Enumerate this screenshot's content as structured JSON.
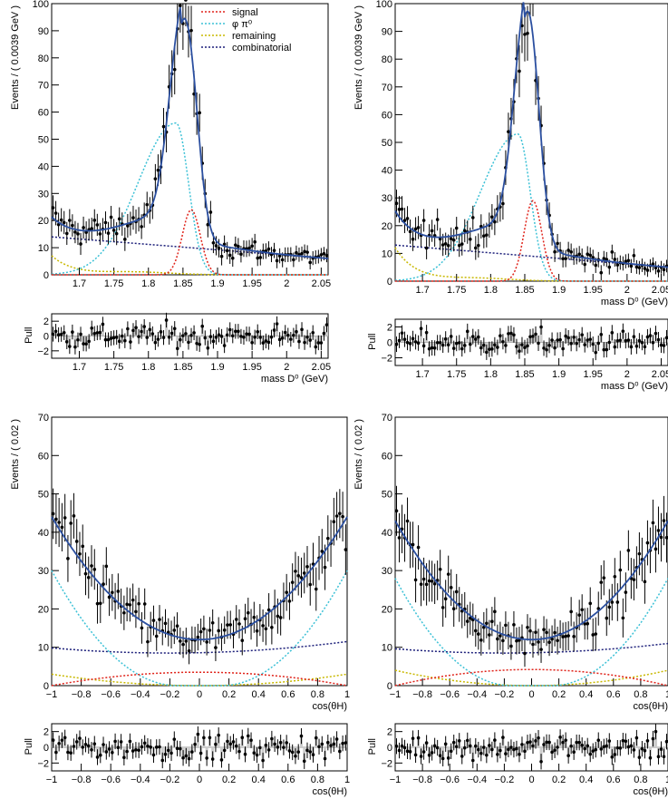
{
  "colors": {
    "total": "#2b4fa0",
    "signal": "#e0241b",
    "phi_pi0": "#3cc1d6",
    "remaining": "#c8b800",
    "combinatorial": "#1c1f7a",
    "points": "#000000"
  },
  "legend": {
    "signal": "signal",
    "phi_pi0": "φ π⁰",
    "remaining": "remaining",
    "combinatorial": "combinatorial"
  },
  "chart_data": [
    {
      "type": "scatter",
      "panel": "mass-main-left",
      "ylabel": "Events / ( 0.0039 GeV )",
      "xlabel": "",
      "xlim": [
        1.66,
        2.06
      ],
      "ylim": [
        0,
        100
      ],
      "x_ticks": [
        "1.7",
        "1.75",
        "1.8",
        "1.85",
        "1.9",
        "1.95",
        "2",
        "2.05"
      ],
      "y_ticks": [
        "0",
        "10",
        "20",
        "30",
        "40",
        "50",
        "60",
        "70",
        "80",
        "90",
        "100"
      ],
      "shape": {
        "total_peak": 76,
        "mu": 1.847,
        "sig": 0.018,
        "comb_left": 14,
        "comb_right": 6,
        "sig_peak": 24,
        "sig_mu": 1.862,
        "phi_peak": 56,
        "phi_mu": 1.84,
        "rem_amp": 7
      }
    },
    {
      "type": "scatter",
      "panel": "mass-main-right",
      "ylabel": "Events / ( 0.0039 GeV )",
      "xlabel": "mass D⁰ (GeV)",
      "xlim": [
        1.66,
        2.06
      ],
      "ylim": [
        0,
        100
      ],
      "x_ticks": [
        "1.7",
        "1.75",
        "1.8",
        "1.85",
        "1.9",
        "1.95",
        "2",
        "2.05"
      ],
      "y_ticks": [
        "0",
        "10",
        "20",
        "30",
        "40",
        "50",
        "60",
        "70",
        "80",
        "90",
        "100"
      ],
      "shape": {
        "total_peak": 73,
        "mu": 1.849,
        "sig": 0.017,
        "comb_left": 13,
        "comb_right": 5,
        "sig_peak": 29,
        "sig_mu": 1.862,
        "phi_peak": 53,
        "phi_mu": 1.84,
        "rem_amp": 12
      }
    },
    {
      "type": "scatter",
      "panel": "mass-pull-left",
      "ylabel": "Pull",
      "xlabel": "mass D⁰ (GeV)",
      "xlim": [
        1.66,
        2.06
      ],
      "ylim": [
        -3,
        3
      ],
      "x_ticks": [
        "1.7",
        "1.75",
        "1.8",
        "1.85",
        "1.9",
        "1.95",
        "2",
        "2.05"
      ],
      "y_ticks": [
        "-2",
        "0",
        "2"
      ]
    },
    {
      "type": "scatter",
      "panel": "mass-pull-right",
      "ylabel": "Pull",
      "xlabel": "mass D⁰ (GeV)",
      "xlim": [
        1.66,
        2.06
      ],
      "ylim": [
        -3,
        3
      ],
      "x_ticks": [
        "1.7",
        "1.75",
        "1.8",
        "1.85",
        "1.9",
        "1.95",
        "2",
        "2.05"
      ],
      "y_ticks": [
        "-2",
        "0",
        "2"
      ]
    },
    {
      "type": "scatter",
      "panel": "cos-main-left",
      "ylabel": "Events / ( 0.02 )",
      "xlabel": "cos(θH)",
      "xlim": [
        -1,
        1
      ],
      "ylim": [
        0,
        70
      ],
      "x_ticks": [
        "-1",
        "-0.8",
        "-0.6",
        "-0.4",
        "-0.2",
        "0",
        "0.2",
        "0.4",
        "0.6",
        "0.8",
        "1"
      ],
      "y_ticks": [
        "0",
        "10",
        "20",
        "30",
        "40",
        "50",
        "60",
        "70"
      ],
      "shape": {
        "tot_min": 12,
        "tot_edge": 44,
        "phi_edge": 30,
        "comb_min": 8.5,
        "comb_edge": 11.5,
        "sig_peak": 3.5,
        "rem_edge": 3
      }
    },
    {
      "type": "scatter",
      "panel": "cos-main-right",
      "ylabel": "Events / ( 0.02 )",
      "xlabel": "cos(θH)",
      "xlim": [
        -1,
        1
      ],
      "ylim": [
        0,
        70
      ],
      "x_ticks": [
        "-1",
        "-0.8",
        "-0.6",
        "-0.4",
        "-0.2",
        "0",
        "0.2",
        "0.4",
        "0.6",
        "0.8",
        "1"
      ],
      "y_ticks": [
        "0",
        "10",
        "20",
        "30",
        "40",
        "50",
        "60",
        "70"
      ],
      "shape": {
        "tot_min": 12,
        "tot_edge": 43,
        "phi_edge": 28,
        "comb_min": 8.5,
        "comb_edge": 11,
        "sig_peak": 4.2,
        "rem_edge": 4
      }
    },
    {
      "type": "scatter",
      "panel": "cos-pull-left",
      "ylabel": "Pull",
      "xlabel": "cos(θH)",
      "xlim": [
        -1,
        1
      ],
      "ylim": [
        -3,
        3
      ],
      "x_ticks": [
        "-1",
        "-0.8",
        "-0.6",
        "-0.4",
        "-0.2",
        "0",
        "0.2",
        "0.4",
        "0.6",
        "0.8",
        "1"
      ],
      "y_ticks": [
        "-2",
        "0",
        "2"
      ]
    },
    {
      "type": "scatter",
      "panel": "cos-pull-right",
      "ylabel": "Pull",
      "xlabel": "cos(θH)",
      "xlim": [
        -1,
        1
      ],
      "ylim": [
        -3,
        3
      ],
      "x_ticks": [
        "-1",
        "-0.8",
        "-0.6",
        "-0.4",
        "-0.2",
        "0",
        "0.2",
        "0.4",
        "0.6",
        "0.8",
        "1"
      ],
      "y_ticks": [
        "-2",
        "0",
        "2"
      ]
    }
  ]
}
